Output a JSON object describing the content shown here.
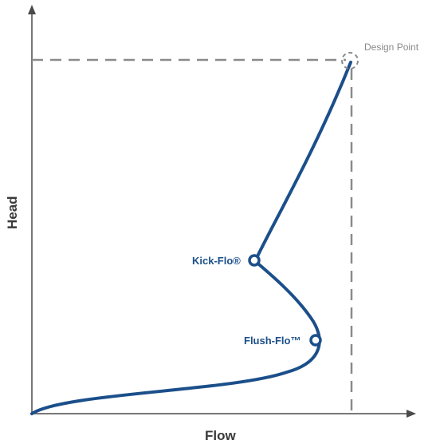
{
  "axes": {
    "x_label": "Flow",
    "y_label": "Head"
  },
  "annotations": {
    "design_point": "Design Point",
    "kick_flo": "Kick-Flo®",
    "flush_flo": "Flush-Flo™"
  },
  "colors": {
    "curve": "#1b4f8a",
    "axis": "#4a4a4a",
    "dashed": "#8a8a8a"
  }
}
